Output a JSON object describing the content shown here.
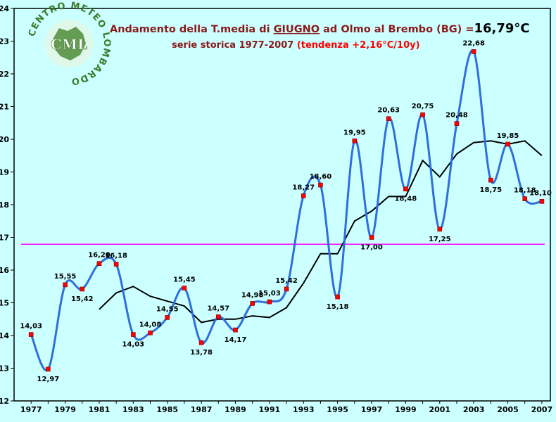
{
  "colors": {
    "background": "#ccffff",
    "plot_border": "#000000",
    "series_main": "#2f6fdd",
    "marker": "#ff0000",
    "moving_avg": "#000000",
    "mean_line": "#ff00ff",
    "title_dark": "#8b1a1a",
    "title_red": "#ff0000",
    "logo_green": "#3d7a2a"
  },
  "header": {
    "title_prefix": "Andamento della T.media di ",
    "title_month": "GIUGNO",
    "title_suffix": " ad Olmo al Brembo (BG) =",
    "title_value": "16,79°C",
    "subtitle_prefix": "serie storica 1977-2007 ",
    "subtitle_trend": "(tendenza +2,16°C/10y)"
  },
  "logo": {
    "ring_text": "CENTRO METEO LOMBARDO",
    "abbr": "CML"
  },
  "chart_data": {
    "type": "line",
    "x": [
      1977,
      1978,
      1979,
      1980,
      1981,
      1982,
      1983,
      1984,
      1985,
      1986,
      1987,
      1988,
      1989,
      1990,
      1991,
      1992,
      1993,
      1994,
      1995,
      1996,
      1997,
      1998,
      1999,
      2000,
      2001,
      2002,
      2003,
      2004,
      2005,
      2006,
      2007
    ],
    "x_tick_labels": [
      "1977",
      "1979",
      "1981",
      "1983",
      "1985",
      "1987",
      "1989",
      "1991",
      "1993",
      "1995",
      "1997",
      "1999",
      "2001",
      "2003",
      "2005",
      "2007"
    ],
    "ylim": [
      12,
      24
    ],
    "y_ticks": [
      12,
      13,
      14,
      15,
      16,
      17,
      18,
      19,
      20,
      21,
      22,
      23,
      24
    ],
    "grid": false,
    "series": [
      {
        "values": [
          14.03,
          12.97,
          15.55,
          15.42,
          16.2,
          16.18,
          14.03,
          14.08,
          14.55,
          15.45,
          13.78,
          14.57,
          14.17,
          14.98,
          15.03,
          15.42,
          18.27,
          18.6,
          15.18,
          19.95,
          17.0,
          20.63,
          18.48,
          20.75,
          17.25,
          20.48,
          22.68,
          18.75,
          19.85,
          18.18,
          18.1
        ],
        "labels": [
          "14,03",
          "12,97",
          "15,55",
          "15,42",
          "16,20",
          "16,18",
          "14,03",
          "14,08",
          "14,55",
          "15,45",
          "13,78",
          "14,57",
          "14,17",
          "14,98",
          "15,03",
          "15,42",
          "18,27",
          "18,60",
          "15,18",
          "19,95",
          "17,00",
          "20,63",
          "18,48",
          "20,75",
          "17,25",
          "20,48",
          "22,68",
          "18,75",
          "19,85",
          "18,18",
          "18,10"
        ]
      },
      {
        "x": [
          1981,
          1982,
          1983,
          1984,
          1985,
          1986,
          1987,
          1988,
          1989,
          1990,
          1991,
          1992,
          1993,
          1994,
          1995,
          1996,
          1997,
          1998,
          1999,
          2000,
          2001,
          2002,
          2003,
          2004,
          2005,
          2006,
          2007
        ],
        "values": [
          14.8,
          15.3,
          15.5,
          15.2,
          15.05,
          14.9,
          14.4,
          14.5,
          14.5,
          14.6,
          14.55,
          14.85,
          15.6,
          16.5,
          16.5,
          17.5,
          17.8,
          18.25,
          18.25,
          19.35,
          18.85,
          19.55,
          19.9,
          19.95,
          19.85,
          19.95,
          19.5
        ]
      }
    ],
    "mean_value": 16.79
  }
}
